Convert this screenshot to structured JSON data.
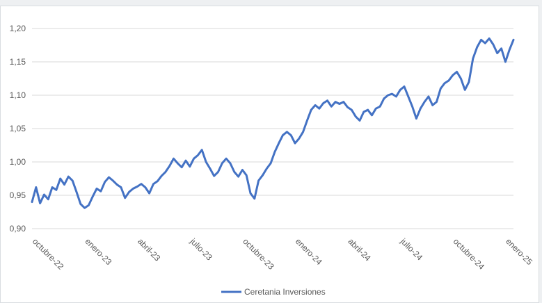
{
  "chart_data": {
    "type": "line",
    "series": [
      {
        "name": "Ceretania Inversiones",
        "color": "#4472c4",
        "x": [
          "2022-10-03",
          "2022-10-10",
          "2022-10-17",
          "2022-10-24",
          "2022-10-31",
          "2022-11-07",
          "2022-11-14",
          "2022-11-21",
          "2022-11-28",
          "2022-12-05",
          "2022-12-12",
          "2022-12-19",
          "2022-12-26",
          "2023-01-02",
          "2023-01-09",
          "2023-01-16",
          "2023-01-23",
          "2023-01-30",
          "2023-02-06",
          "2023-02-13",
          "2023-02-20",
          "2023-02-27",
          "2023-03-06",
          "2023-03-13",
          "2023-03-20",
          "2023-03-27",
          "2023-04-03",
          "2023-04-10",
          "2023-04-17",
          "2023-04-24",
          "2023-05-01",
          "2023-05-08",
          "2023-05-15",
          "2023-05-22",
          "2023-05-29",
          "2023-06-05",
          "2023-06-12",
          "2023-06-19",
          "2023-06-26",
          "2023-07-03",
          "2023-07-10",
          "2023-07-17",
          "2023-07-24",
          "2023-07-31",
          "2023-08-07",
          "2023-08-14",
          "2023-08-21",
          "2023-08-28",
          "2023-09-04",
          "2023-09-11",
          "2023-09-18",
          "2023-09-25",
          "2023-10-02",
          "2023-10-09",
          "2023-10-16",
          "2023-10-23",
          "2023-10-30",
          "2023-11-06",
          "2023-11-13",
          "2023-11-20",
          "2023-11-27",
          "2023-12-04",
          "2023-12-11",
          "2023-12-18",
          "2023-12-25",
          "2024-01-01",
          "2024-01-08",
          "2024-01-15",
          "2024-01-22",
          "2024-01-29",
          "2024-02-05",
          "2024-02-12",
          "2024-02-19",
          "2024-02-26",
          "2024-03-04",
          "2024-03-11",
          "2024-03-18",
          "2024-03-25",
          "2024-04-01",
          "2024-04-08",
          "2024-04-15",
          "2024-04-22",
          "2024-04-29",
          "2024-05-06",
          "2024-05-13",
          "2024-05-20",
          "2024-05-27",
          "2024-06-03",
          "2024-06-10",
          "2024-06-17",
          "2024-06-24",
          "2024-07-01",
          "2024-07-08",
          "2024-07-15",
          "2024-07-22",
          "2024-07-29",
          "2024-08-05",
          "2024-08-12",
          "2024-08-19",
          "2024-08-26",
          "2024-09-02",
          "2024-09-09",
          "2024-09-16",
          "2024-09-23",
          "2024-09-30",
          "2024-10-07",
          "2024-10-14",
          "2024-10-21",
          "2024-10-28",
          "2024-11-04",
          "2024-11-11",
          "2024-11-18",
          "2024-11-25",
          "2024-12-02",
          "2024-12-09",
          "2024-12-16",
          "2024-12-23",
          "2024-12-30",
          "2025-01-06",
          "2025-01-13"
        ],
        "values": [
          0.94,
          0.962,
          0.938,
          0.951,
          0.944,
          0.962,
          0.958,
          0.975,
          0.966,
          0.978,
          0.972,
          0.955,
          0.937,
          0.931,
          0.935,
          0.948,
          0.96,
          0.956,
          0.97,
          0.977,
          0.972,
          0.966,
          0.962,
          0.946,
          0.955,
          0.96,
          0.963,
          0.967,
          0.962,
          0.953,
          0.967,
          0.971,
          0.979,
          0.985,
          0.994,
          1.005,
          0.998,
          0.992,
          1.002,
          0.993,
          1.005,
          1.01,
          1.018,
          1.0,
          0.99,
          0.979,
          0.985,
          0.998,
          1.005,
          0.998,
          0.985,
          0.978,
          0.988,
          0.98,
          0.953,
          0.945,
          0.972,
          0.98,
          0.99,
          0.998,
          1.015,
          1.028,
          1.04,
          1.045,
          1.04,
          1.028,
          1.035,
          1.045,
          1.062,
          1.078,
          1.085,
          1.08,
          1.088,
          1.092,
          1.083,
          1.09,
          1.087,
          1.09,
          1.082,
          1.078,
          1.068,
          1.062,
          1.075,
          1.078,
          1.07,
          1.08,
          1.083,
          1.095,
          1.1,
          1.102,
          1.098,
          1.108,
          1.113,
          1.098,
          1.083,
          1.065,
          1.08,
          1.09,
          1.098,
          1.085,
          1.09,
          1.11,
          1.118,
          1.122,
          1.13,
          1.135,
          1.125,
          1.108,
          1.12,
          1.155,
          1.172,
          1.183,
          1.178,
          1.185,
          1.176,
          1.163,
          1.17,
          1.15,
          1.168,
          1.183
        ]
      }
    ],
    "y_ticks": [
      "0,90",
      "0,95",
      "1,00",
      "1,05",
      "1,10",
      "1,15",
      "1,20"
    ],
    "ylim": [
      0.9,
      1.2
    ],
    "x_ticks": [
      {
        "date": "2022-10-03",
        "label": "octubre-22"
      },
      {
        "date": "2023-01-02",
        "label": "enero-23"
      },
      {
        "date": "2023-04-03",
        "label": "abril-23"
      },
      {
        "date": "2023-07-03",
        "label": "julio-23"
      },
      {
        "date": "2023-10-02",
        "label": "octubre-23"
      },
      {
        "date": "2024-01-01",
        "label": "enero-24"
      },
      {
        "date": "2024-04-01",
        "label": "abril-24"
      },
      {
        "date": "2024-07-01",
        "label": "julio-24"
      },
      {
        "date": "2024-09-30",
        "label": "octubre-24"
      },
      {
        "date": "2024-12-30",
        "label": "enero-25"
      }
    ],
    "xlim": [
      "2022-10-03",
      "2025-01-13"
    ],
    "grid": true,
    "legend_position": "bottom",
    "title": "",
    "xlabel": "",
    "ylabel": ""
  }
}
